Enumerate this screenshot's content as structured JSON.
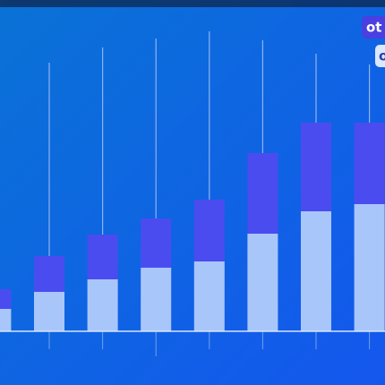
{
  "chart_data": {
    "type": "bar",
    "stacked": true,
    "categories": [
      null,
      null,
      null,
      null,
      null,
      null,
      null,
      null
    ],
    "series": [
      {
        "name": "o",
        "color": "#a9c6fb",
        "values": [
          25,
          44,
          58,
          71,
          78,
          109,
          134,
          142
        ]
      },
      {
        "name": "ot",
        "color": "#4a4cf0",
        "values": [
          22,
          40,
          50,
          55,
          69,
          90,
          99,
          91
        ]
      }
    ],
    "lines": {
      "color": "#8fb2f2",
      "values": [
        null,
        300,
        317,
        327,
        335,
        325,
        310,
        298
      ]
    },
    "ylim": [
      0,
      340
    ]
  }
}
